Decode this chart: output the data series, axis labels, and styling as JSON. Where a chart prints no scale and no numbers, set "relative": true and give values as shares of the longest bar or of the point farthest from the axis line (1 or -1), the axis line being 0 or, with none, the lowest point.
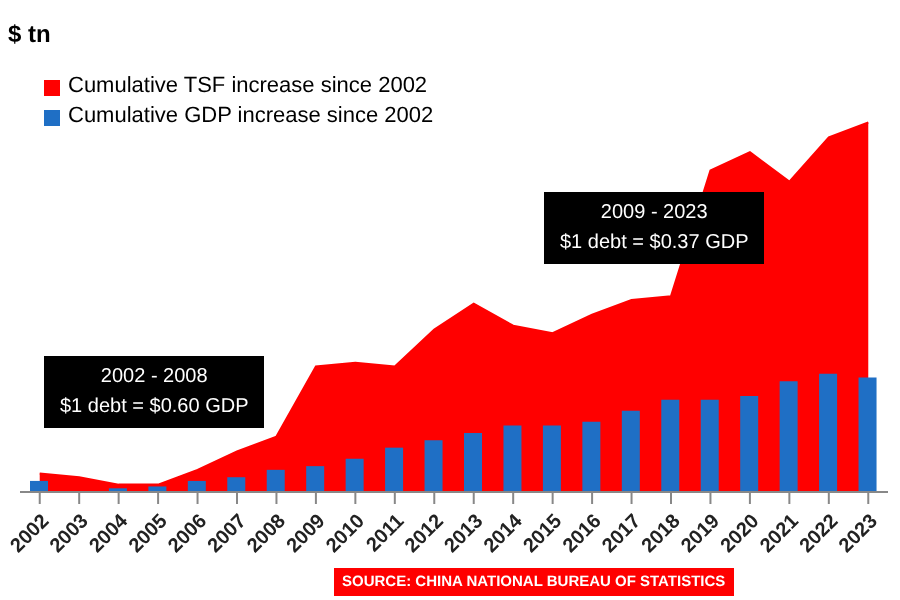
{
  "chart_data": {
    "type": "area",
    "ylabel": "$ tn",
    "relative": true,
    "legend": "top left",
    "categories": [
      "2002",
      "2003",
      "2004",
      "2005",
      "2006",
      "2007",
      "2008",
      "2009",
      "2010",
      "2011",
      "2012",
      "2013",
      "2014",
      "2015",
      "2016",
      "2017",
      "2018",
      "2019",
      "2020",
      "2021",
      "2022",
      "2023"
    ],
    "series": [
      {
        "name": "Cumulative TSF increase since 2002",
        "color": "#ff0000",
        "values": [
          0.05,
          0.04,
          0.02,
          0.02,
          0.06,
          0.11,
          0.15,
          0.34,
          0.35,
          0.34,
          0.44,
          0.51,
          0.45,
          0.43,
          0.48,
          0.52,
          0.53,
          0.87,
          0.92,
          0.84,
          0.96,
          1
        ]
      },
      {
        "name": "Cumulative GDP increase since 2002",
        "type": "bar",
        "color": "#1f6fc5",
        "values": [
          0.03,
          0,
          0.01,
          0.015,
          0.03,
          0.04,
          0.06,
          0.07,
          0.09,
          0.12,
          0.14,
          0.16,
          0.18,
          0.18,
          0.19,
          0.22,
          0.25,
          0.25,
          0.26,
          0.3,
          0.32,
          0.31
        ]
      }
    ],
    "annotations": [
      "2002 - 2008\n$1 debt = $0.60 GDP",
      "2009 - 2023\n$1 debt = $0.37 GDP",
      "SOURCE: CHINA NATIONAL BUREAU OF STATISTICS"
    ]
  }
}
